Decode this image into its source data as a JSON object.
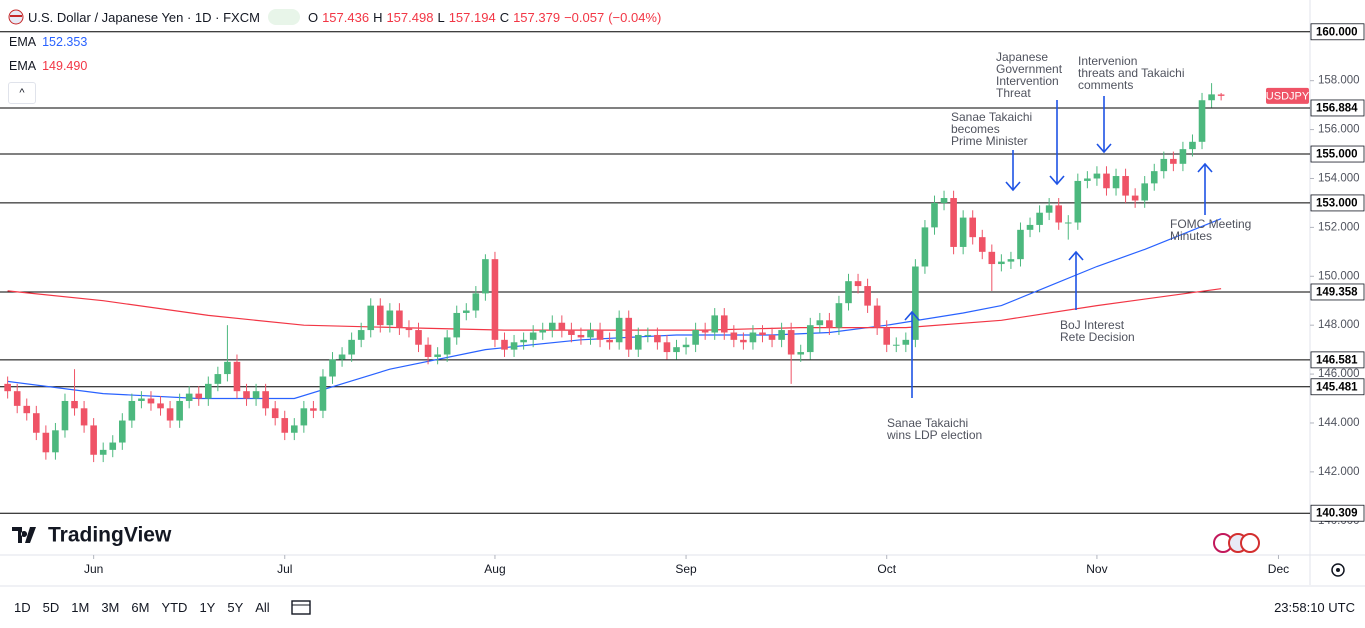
{
  "chart_data": {
    "type": "candlestick",
    "title": "U.S. Dollar / Japanese Yen · 1D · FXCM",
    "ohlc_keys": [
      "O",
      "H",
      "L",
      "C"
    ],
    "change": {
      "value": -0.057,
      "label": "−0.057"
    },
    "change_percent": {
      "value": -0.04,
      "label": "(−0.04%)"
    },
    "up_color": "#4cb87e",
    "down_color": "#ef5366",
    "xlim": [
      -0.8,
      136.3
    ],
    "ylim": [
      138.6,
      161.3
    ],
    "xticks": [
      {
        "value": 9,
        "label": "Jun"
      },
      {
        "value": 29,
        "label": "Jul"
      },
      {
        "value": 51,
        "label": "Aug"
      },
      {
        "value": 71,
        "label": "Sep"
      },
      {
        "value": 92,
        "label": "Oct"
      },
      {
        "value": 114,
        "label": "Nov"
      },
      {
        "value": 133,
        "label": "Dec"
      }
    ],
    "yticks": [
      {
        "value": 140,
        "label": "140.000"
      },
      {
        "value": 142,
        "label": "142.000"
      },
      {
        "value": 144,
        "label": "144.000"
      },
      {
        "value": 146,
        "label": "146.000"
      },
      {
        "value": 148,
        "label": "148.000"
      },
      {
        "value": 150,
        "label": "150.000"
      },
      {
        "value": 152,
        "label": "152.000"
      },
      {
        "value": 154,
        "label": "154.000"
      },
      {
        "value": 156,
        "label": "156.000"
      },
      {
        "value": 158,
        "label": "158.000"
      }
    ],
    "grid": false,
    "series": [
      {
        "name": "USDJPY",
        "color": "#ef5366",
        "open": [
          145.6,
          145.3,
          144.7,
          144.4,
          143.6,
          142.8,
          143.7,
          144.9,
          144.6,
          143.9,
          142.7,
          142.9,
          143.2,
          144.1,
          144.9,
          145.0,
          144.8,
          144.6,
          144.1,
          144.9,
          145.2,
          145.0,
          145.6,
          146.0,
          146.5,
          145.3,
          145.0,
          145.3,
          144.6,
          144.2,
          143.6,
          143.9,
          144.6,
          144.5,
          145.9,
          146.6,
          146.8,
          147.4,
          147.8,
          148.8,
          148.0,
          148.6,
          147.9,
          147.8,
          147.2,
          146.7,
          146.8,
          147.5,
          148.5,
          148.6,
          149.3,
          150.7,
          147.4,
          147.0,
          147.3,
          147.4,
          147.7,
          147.8,
          148.1,
          147.8,
          147.6,
          147.5,
          147.8,
          147.4,
          147.3,
          148.3,
          147.0,
          147.6,
          147.6,
          147.3,
          146.9,
          147.1,
          147.2,
          147.8,
          147.7,
          148.4,
          147.7,
          147.4,
          147.3,
          147.7,
          147.6,
          147.4,
          147.8,
          146.8,
          146.9,
          148.0,
          148.2,
          147.9,
          148.9,
          149.8,
          149.6,
          148.8,
          147.9,
          147.2,
          147.2,
          147.4,
          150.4,
          152.0,
          153.0,
          153.2,
          151.2,
          152.4,
          151.6,
          151.0,
          150.5,
          150.6,
          150.7,
          151.9,
          152.1,
          152.6,
          152.9,
          152.2,
          152.2,
          153.9,
          154.0,
          154.2,
          153.6,
          154.1,
          153.3,
          153.1,
          153.8,
          154.3,
          154.8,
          154.6,
          155.2,
          155.5,
          157.2,
          157.436
        ],
        "high": [
          145.9,
          145.6,
          145.0,
          144.7,
          143.9,
          144.0,
          145.2,
          146.2,
          144.9,
          144.2,
          143.2,
          143.5,
          144.4,
          145.2,
          145.3,
          145.3,
          145.1,
          144.9,
          145.2,
          145.5,
          145.5,
          145.9,
          146.3,
          148.0,
          146.8,
          145.6,
          145.6,
          145.6,
          144.9,
          144.5,
          144.2,
          144.9,
          144.9,
          146.2,
          146.9,
          147.1,
          147.7,
          148.1,
          149.1,
          149.1,
          148.9,
          148.9,
          148.2,
          148.1,
          147.5,
          147.1,
          147.8,
          148.8,
          148.9,
          149.6,
          150.9,
          151.0,
          147.7,
          147.6,
          147.7,
          148.0,
          148.1,
          148.4,
          148.4,
          148.1,
          147.9,
          148.1,
          148.1,
          147.7,
          148.6,
          148.6,
          147.9,
          147.9,
          147.9,
          147.6,
          147.4,
          147.5,
          148.1,
          148.1,
          148.7,
          148.7,
          148.0,
          147.7,
          148.0,
          148.0,
          147.9,
          148.1,
          148.1,
          147.2,
          148.3,
          148.5,
          148.5,
          149.2,
          150.1,
          150.1,
          149.9,
          149.1,
          148.2,
          147.5,
          147.7,
          150.7,
          152.3,
          153.3,
          153.5,
          153.5,
          152.7,
          152.7,
          151.9,
          151.3,
          150.9,
          151.0,
          152.2,
          152.4,
          152.9,
          153.2,
          153.2,
          152.5,
          154.2,
          154.3,
          154.5,
          154.5,
          154.4,
          154.4,
          153.6,
          154.1,
          154.6,
          155.1,
          155.1,
          155.5,
          155.8,
          157.5,
          157.9,
          157.498
        ],
        "low": [
          145.0,
          144.4,
          144.1,
          143.3,
          142.5,
          142.5,
          143.4,
          144.3,
          143.6,
          142.4,
          142.4,
          142.6,
          142.9,
          143.8,
          144.6,
          144.5,
          144.3,
          143.8,
          143.8,
          144.6,
          144.7,
          144.7,
          145.3,
          145.7,
          145.0,
          144.7,
          144.7,
          144.3,
          143.9,
          143.3,
          143.3,
          143.6,
          144.2,
          144.2,
          145.6,
          146.3,
          146.5,
          147.1,
          147.5,
          147.7,
          147.7,
          147.6,
          147.5,
          146.9,
          146.4,
          146.4,
          146.5,
          147.2,
          148.2,
          148.3,
          149.0,
          147.1,
          146.7,
          146.7,
          147.0,
          147.1,
          147.4,
          147.5,
          147.5,
          147.3,
          147.2,
          147.2,
          147.1,
          147.0,
          147.0,
          146.7,
          146.7,
          147.3,
          147.0,
          146.6,
          146.6,
          146.8,
          146.9,
          147.4,
          147.4,
          147.4,
          147.1,
          147.0,
          147.0,
          147.3,
          147.1,
          147.1,
          145.6,
          146.5,
          146.6,
          147.7,
          147.6,
          147.6,
          148.6,
          149.3,
          148.5,
          147.6,
          146.9,
          146.9,
          146.9,
          147.1,
          150.1,
          151.7,
          152.7,
          150.9,
          150.9,
          151.3,
          150.7,
          149.4,
          150.2,
          150.3,
          150.4,
          151.6,
          151.8,
          152.3,
          151.9,
          151.5,
          151.9,
          153.6,
          153.7,
          153.3,
          153.3,
          153.0,
          152.8,
          152.8,
          153.5,
          154.0,
          154.3,
          154.3,
          154.9,
          155.2,
          156.9,
          157.194
        ],
        "close": [
          145.3,
          144.7,
          144.4,
          143.6,
          142.8,
          143.7,
          144.9,
          144.6,
          143.9,
          142.7,
          142.9,
          143.2,
          144.1,
          144.9,
          145.0,
          144.8,
          144.6,
          144.1,
          144.9,
          145.2,
          145.0,
          145.6,
          146.0,
          146.5,
          145.3,
          145.0,
          145.3,
          144.6,
          144.2,
          143.6,
          143.9,
          144.6,
          144.5,
          145.9,
          146.6,
          146.8,
          147.4,
          147.8,
          148.8,
          148.0,
          148.6,
          147.9,
          147.8,
          147.2,
          146.7,
          146.8,
          147.5,
          148.5,
          148.6,
          149.3,
          150.7,
          147.4,
          147.0,
          147.3,
          147.4,
          147.7,
          147.8,
          148.1,
          147.8,
          147.6,
          147.5,
          147.8,
          147.4,
          147.3,
          148.3,
          147.0,
          147.6,
          147.6,
          147.3,
          146.9,
          147.1,
          147.2,
          147.8,
          147.7,
          148.4,
          147.7,
          147.4,
          147.3,
          147.7,
          147.6,
          147.4,
          147.8,
          146.8,
          146.9,
          148.0,
          148.2,
          147.9,
          148.9,
          149.8,
          149.6,
          148.8,
          147.9,
          147.2,
          147.2,
          147.4,
          150.4,
          152.0,
          153.0,
          153.2,
          151.2,
          152.4,
          151.6,
          151.0,
          150.5,
          150.6,
          150.7,
          151.9,
          152.1,
          152.6,
          152.9,
          152.2,
          152.2,
          153.9,
          154.0,
          154.2,
          153.6,
          154.1,
          153.3,
          153.1,
          153.8,
          154.3,
          154.8,
          154.6,
          155.2,
          155.5,
          157.2,
          157.44,
          157.379
        ]
      }
    ],
    "indicators": [
      {
        "name": "EMA",
        "color": "#2962ff",
        "x": [
          0,
          10,
          20,
          30,
          40,
          50,
          60,
          70,
          80,
          86,
          92,
          100,
          104,
          109,
          114,
          119,
          127
        ],
        "values": [
          145.7,
          145.2,
          145.0,
          145.0,
          146.2,
          147.0,
          147.4,
          147.6,
          147.6,
          147.7,
          148.0,
          148.5,
          148.8,
          149.6,
          150.4,
          151.1,
          152.353
        ]
      },
      {
        "name": "EMA",
        "color": "#f23645",
        "x": [
          0,
          10,
          21,
          31,
          41,
          52,
          62,
          73,
          83,
          94,
          104,
          114,
          127
        ],
        "values": [
          149.4,
          149.0,
          148.4,
          148.0,
          147.9,
          147.8,
          147.8,
          147.8,
          147.9,
          147.9,
          148.2,
          148.8,
          149.49
        ],
        "value_labels": [
          null,
          null,
          null,
          null,
          null,
          null,
          null,
          null,
          null,
          null,
          null,
          null,
          "149.490"
        ]
      }
    ],
    "levels": [
      {
        "value": 160,
        "label": "160.000"
      },
      {
        "value": 156.884,
        "label": "156.884"
      },
      {
        "value": 155,
        "label": "155.000"
      },
      {
        "value": 153,
        "label": "153.000"
      },
      {
        "value": 149.358,
        "label": "149.358"
      },
      {
        "value": 146.581,
        "label": "146.581"
      },
      {
        "value": 145.481,
        "label": "145.481"
      },
      {
        "value": 140.309,
        "label": "140.309"
      }
    ],
    "annotations": [
      {
        "lines": [
          "Sanae Takaichi",
          "becomes",
          "Prime Minister"
        ]
      },
      {
        "lines": [
          "Japanese",
          "Government",
          "Intervention",
          "Threat"
        ]
      },
      {
        "lines": [
          "Intervenion",
          "threats and Takaichi",
          "comments"
        ]
      },
      {
        "lines": [
          "FOMC Meeting",
          "Minutes"
        ]
      },
      {
        "lines": [
          "BoJ Interest",
          "Rete Decision"
        ]
      },
      {
        "lines": [
          "Sanae Takaichi",
          "wins LDP election"
        ]
      }
    ],
    "brand": "TradingView",
    "ranges": [
      "1D",
      "5D",
      "1M",
      "3M",
      "6M",
      "YTD",
      "1Y",
      "5Y",
      "All"
    ],
    "clock": "23:58:10 UTC"
  }
}
